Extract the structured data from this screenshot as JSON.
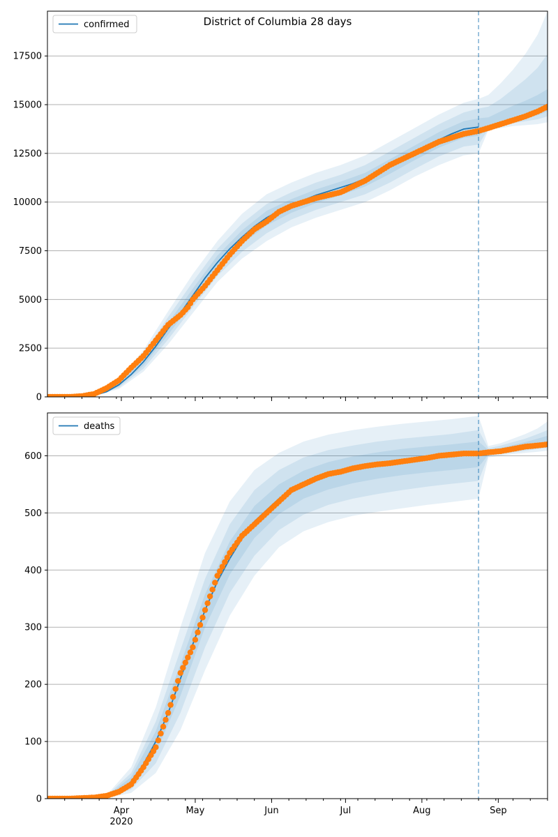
{
  "title": "District of Columbia 28 days",
  "colors": {
    "model_line": "#1f77b4",
    "observed": "#ff7f0e",
    "band": "#1f77b4",
    "grid": "#b0b0b0",
    "cutoff": "#1f77b4"
  },
  "x_axis": {
    "month_labels": [
      "Apr",
      "May",
      "Jun",
      "Jul",
      "Aug",
      "Sep"
    ],
    "month_days": [
      31,
      61,
      92,
      122,
      153,
      184
    ],
    "year_label": "2020",
    "range_days": [
      1,
      204
    ],
    "cutoff_day": 176
  },
  "chart_data": [
    {
      "type": "line",
      "legend": "confirmed",
      "ylim": [
        0,
        19800
      ],
      "yticks": [
        0,
        2500,
        5000,
        7500,
        10000,
        12500,
        15000,
        17500
      ],
      "grid": true,
      "legend_position": "top-left",
      "x_units": "days since 2020-03-01",
      "model_line": {
        "x": [
          1,
          20,
          25,
          30,
          35,
          40,
          45,
          50,
          55,
          60,
          65,
          70,
          75,
          80,
          85,
          90,
          95,
          100,
          105,
          110,
          115,
          120,
          125,
          130,
          135,
          140,
          145,
          150,
          155,
          160,
          165,
          170,
          176
        ],
        "y": [
          0,
          80,
          260,
          620,
          1150,
          1800,
          2600,
          3500,
          4300,
          5200,
          6100,
          6900,
          7600,
          8200,
          8750,
          9200,
          9550,
          9850,
          10100,
          10350,
          10550,
          10750,
          10950,
          11200,
          11500,
          11850,
          12200,
          12550,
          12900,
          13200,
          13500,
          13750,
          13850
        ]
      },
      "band_x": [
        1,
        20,
        30,
        40,
        50,
        60,
        70,
        80,
        90,
        100,
        110,
        120,
        130,
        140,
        150,
        160,
        170,
        176,
        180,
        185,
        190,
        195,
        200,
        204
      ],
      "band_center": [
        0,
        80,
        620,
        1800,
        3500,
        5200,
        6900,
        8200,
        9200,
        9850,
        10350,
        10750,
        11200,
        11850,
        12550,
        13200,
        13750,
        13850,
        13850,
        14000,
        14200,
        14400,
        14650,
        14950
      ],
      "bands_upper": [
        [
          0,
          120,
          900,
          2400,
          4400,
          6300,
          8000,
          9400,
          10400,
          11000,
          11500,
          11900,
          12400,
          13100,
          13800,
          14500,
          15100,
          15300,
          15500,
          16100,
          16800,
          17600,
          18600,
          19800
        ],
        [
          0,
          100,
          800,
          2200,
          4100,
          5900,
          7600,
          8900,
          9900,
          10500,
          11000,
          11400,
          11900,
          12600,
          13300,
          14000,
          14600,
          14800,
          14900,
          15300,
          15800,
          16300,
          16900,
          17600
        ],
        [
          0,
          90,
          720,
          2000,
          3800,
          5550,
          7250,
          8550,
          9550,
          10150,
          10650,
          11050,
          11500,
          12200,
          12900,
          13600,
          14150,
          14300,
          14350,
          14650,
          14950,
          15200,
          15500,
          15800
        ]
      ],
      "bands_lower": [
        [
          0,
          50,
          400,
          1300,
          2700,
          4300,
          5900,
          7100,
          8000,
          8700,
          9200,
          9600,
          10000,
          10600,
          11300,
          11900,
          12400,
          12500,
          13700,
          13800,
          13900,
          13950,
          14000,
          14100
        ],
        [
          0,
          60,
          470,
          1450,
          2950,
          4600,
          6200,
          7450,
          8400,
          9100,
          9600,
          10000,
          10400,
          11000,
          11700,
          12350,
          12850,
          12950,
          13750,
          13900,
          14050,
          14150,
          14250,
          14400
        ],
        [
          0,
          70,
          540,
          1600,
          3200,
          4850,
          6550,
          7850,
          8800,
          9450,
          9950,
          10350,
          10800,
          11450,
          12150,
          12800,
          13300,
          13400,
          13800,
          13950,
          14150,
          14300,
          14450,
          14650
        ]
      ],
      "observed": {
        "x": [
          1,
          10,
          15,
          20,
          25,
          30,
          35,
          40,
          45,
          50,
          55,
          58,
          60,
          65,
          70,
          75,
          80,
          85,
          90,
          95,
          100,
          105,
          110,
          115,
          120,
          125,
          130,
          135,
          140,
          145,
          150,
          155,
          160,
          165,
          170,
          176,
          180,
          185,
          190,
          195,
          200,
          204
        ],
        "y": [
          0,
          0,
          40,
          150,
          450,
          850,
          1500,
          2100,
          2900,
          3700,
          4200,
          4600,
          5000,
          5700,
          6500,
          7300,
          8000,
          8600,
          9000,
          9500,
          9800,
          10000,
          10200,
          10350,
          10500,
          10800,
          11100,
          11500,
          11900,
          12200,
          12500,
          12800,
          13100,
          13300,
          13500,
          13650,
          13800,
          14000,
          14200,
          14400,
          14650,
          14900
        ]
      }
    },
    {
      "type": "line",
      "legend": "deaths",
      "ylim": [
        0,
        675
      ],
      "yticks": [
        0,
        100,
        200,
        300,
        400,
        500,
        600
      ],
      "grid": true,
      "legend_position": "top-left",
      "x_units": "days since 2020-03-01",
      "model_line": {
        "x": [
          1,
          25,
          30,
          35,
          40,
          45,
          50,
          55,
          60,
          65,
          70,
          75,
          80,
          85,
          90,
          95,
          100,
          105,
          110,
          115,
          120,
          125,
          130,
          135,
          140,
          145,
          150,
          155,
          160,
          165,
          170,
          176,
          180,
          185,
          190,
          195,
          200,
          204
        ],
        "y": [
          0,
          3,
          12,
          30,
          60,
          100,
          150,
          210,
          270,
          330,
          380,
          420,
          455,
          485,
          505,
          525,
          540,
          552,
          560,
          567,
          573,
          578,
          582,
          585,
          588,
          591,
          593,
          595,
          597,
          599,
          601,
          603,
          605,
          608,
          612,
          616,
          620,
          623
        ]
      },
      "band_x": [
        1,
        25,
        35,
        45,
        55,
        65,
        75,
        85,
        95,
        105,
        115,
        125,
        135,
        145,
        155,
        165,
        176,
        180,
        185,
        190,
        195,
        200,
        204
      ],
      "band_center": [
        0,
        3,
        30,
        100,
        210,
        330,
        420,
        485,
        525,
        552,
        567,
        578,
        585,
        591,
        595,
        599,
        603,
        605,
        608,
        612,
        616,
        620,
        623
      ],
      "bands_upper": [
        [
          0,
          6,
          55,
          160,
          300,
          430,
          520,
          575,
          605,
          625,
          637,
          645,
          651,
          656,
          660,
          664,
          670,
          617,
          622,
          630,
          638,
          648,
          660
        ],
        [
          0,
          5,
          45,
          135,
          260,
          385,
          480,
          540,
          575,
          597,
          610,
          618,
          625,
          630,
          634,
          638,
          645,
          613,
          618,
          624,
          630,
          638,
          645
        ],
        [
          0,
          4,
          38,
          118,
          235,
          358,
          450,
          512,
          550,
          574,
          589,
          599,
          606,
          612,
          616,
          620,
          625,
          610,
          614,
          619,
          624,
          630,
          635
        ]
      ],
      "bands_lower": [
        [
          0,
          1,
          10,
          45,
          120,
          225,
          320,
          390,
          440,
          468,
          484,
          495,
          502,
          508,
          514,
          519,
          525,
          597,
          600,
          603,
          605,
          607,
          609
        ],
        [
          0,
          2,
          16,
          62,
          150,
          265,
          360,
          425,
          470,
          497,
          514,
          525,
          533,
          540,
          546,
          551,
          556,
          600,
          603,
          606,
          609,
          612,
          614
        ],
        [
          0,
          2,
          22,
          80,
          180,
          300,
          392,
          456,
          498,
          525,
          541,
          552,
          560,
          566,
          571,
          575,
          580,
          602,
          605,
          609,
          612,
          616,
          619
        ]
      ],
      "observed": {
        "x": [
          1,
          10,
          15,
          20,
          25,
          30,
          35,
          40,
          45,
          50,
          55,
          60,
          65,
          70,
          75,
          80,
          85,
          90,
          95,
          100,
          105,
          110,
          115,
          120,
          125,
          130,
          135,
          140,
          145,
          150,
          155,
          160,
          165,
          170,
          176,
          180,
          185,
          190,
          195,
          200,
          204
        ],
        "y": [
          0,
          0,
          1,
          2,
          5,
          12,
          25,
          55,
          90,
          150,
          220,
          265,
          330,
          390,
          430,
          460,
          480,
          500,
          520,
          540,
          550,
          560,
          568,
          572,
          578,
          582,
          585,
          587,
          590,
          593,
          596,
          600,
          602,
          604,
          604,
          606,
          608,
          612,
          616,
          618,
          620
        ]
      }
    }
  ]
}
